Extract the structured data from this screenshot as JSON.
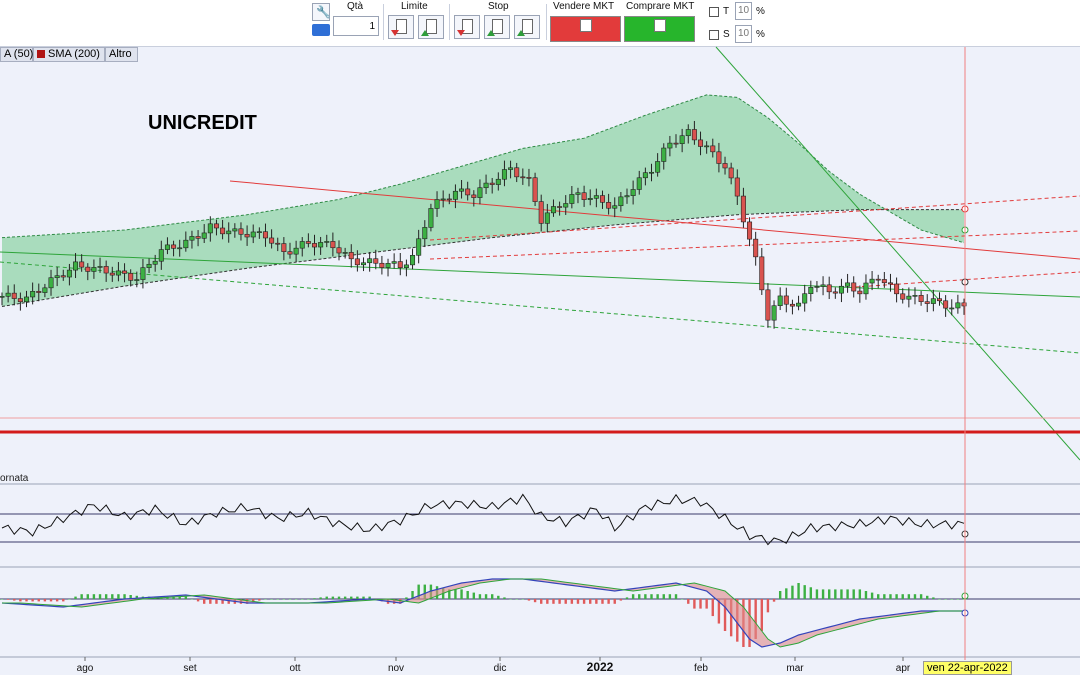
{
  "toolbar": {
    "qty_label": "Qtà",
    "qty_value": "1",
    "limit_label": "Limite",
    "stop_label": "Stop",
    "sell_label": "Vendere MKT",
    "buy_label": "Comprare MKT",
    "t_label": "T",
    "t_value": "10",
    "s_label": "S",
    "s_value": "10",
    "pct": "%",
    "colors": {
      "sell": "#e23b3b",
      "buy": "#27b52c"
    }
  },
  "legend": [
    {
      "label": "A (50)",
      "color": "#1a7a2a"
    },
    {
      "label": "SMA (200)",
      "color": "#b01515"
    },
    {
      "label": "Altro",
      "color": ""
    }
  ],
  "chart_data": {
    "type": "candlestick",
    "title": "UNICREDIT",
    "x_ticks": [
      "ago",
      "set",
      "ott",
      "nov",
      "dic",
      "2022",
      "feb",
      "mar",
      "apr"
    ],
    "cursor_date": "ven 22-apr-2022",
    "subpanel_label": "ornata",
    "price_path_keypoints": [
      [
        0,
        14
      ],
      [
        4,
        13
      ],
      [
        8,
        20
      ],
      [
        12,
        26
      ],
      [
        17,
        24
      ],
      [
        22,
        21
      ],
      [
        26,
        32
      ],
      [
        30,
        35
      ],
      [
        34,
        41
      ],
      [
        38,
        39
      ],
      [
        43,
        38
      ],
      [
        46,
        31
      ],
      [
        50,
        35
      ],
      [
        54,
        34
      ],
      [
        57,
        28
      ],
      [
        61,
        27
      ],
      [
        65,
        26
      ],
      [
        67,
        29
      ],
      [
        70,
        49
      ],
      [
        74,
        55
      ],
      [
        77,
        54
      ],
      [
        80,
        59
      ],
      [
        83,
        64
      ],
      [
        86,
        59
      ],
      [
        88,
        44
      ],
      [
        91,
        50
      ],
      [
        94,
        54
      ],
      [
        97,
        52
      ],
      [
        100,
        49
      ],
      [
        103,
        57
      ],
      [
        106,
        64
      ],
      [
        109,
        74
      ],
      [
        112,
        78
      ],
      [
        115,
        72
      ],
      [
        118,
        65
      ],
      [
        120,
        53
      ],
      [
        123,
        28
      ],
      [
        125,
        6
      ],
      [
        127,
        13
      ],
      [
        130,
        10
      ],
      [
        132,
        19
      ],
      [
        135,
        16
      ],
      [
        138,
        18
      ],
      [
        140,
        16
      ],
      [
        143,
        22
      ],
      [
        146,
        15
      ],
      [
        149,
        13
      ],
      [
        152,
        12
      ],
      [
        155,
        10
      ],
      [
        157,
        10
      ]
    ],
    "series_sma50_keypoints": [
      [
        0,
        7
      ],
      [
        20,
        10
      ],
      [
        40,
        16
      ],
      [
        55,
        22
      ],
      [
        65,
        28
      ],
      [
        75,
        35
      ],
      [
        85,
        42
      ],
      [
        95,
        46
      ],
      [
        105,
        55
      ],
      [
        115,
        63
      ],
      [
        120,
        62
      ],
      [
        125,
        54
      ],
      [
        130,
        44
      ],
      [
        135,
        33
      ],
      [
        140,
        24
      ],
      [
        145,
        17
      ],
      [
        150,
        10
      ],
      [
        157,
        5
      ]
    ],
    "series_sma200_keypoints": [
      [
        0,
        0
      ],
      [
        20,
        8
      ],
      [
        40,
        15
      ],
      [
        60,
        21
      ],
      [
        80,
        27
      ],
      [
        100,
        32
      ],
      [
        120,
        36
      ],
      [
        140,
        38
      ],
      [
        157,
        38
      ]
    ],
    "oscillator_keypoints": [
      [
        0,
        50
      ],
      [
        5,
        48
      ],
      [
        10,
        55
      ],
      [
        15,
        62
      ],
      [
        20,
        56
      ],
      [
        25,
        60
      ],
      [
        30,
        52
      ],
      [
        35,
        58
      ],
      [
        40,
        61
      ],
      [
        45,
        55
      ],
      [
        50,
        58
      ],
      [
        55,
        52
      ],
      [
        60,
        49
      ],
      [
        65,
        54
      ],
      [
        70,
        62
      ],
      [
        75,
        63
      ],
      [
        80,
        61
      ],
      [
        85,
        66
      ],
      [
        88,
        56
      ],
      [
        92,
        53
      ],
      [
        97,
        60
      ],
      [
        100,
        50
      ],
      [
        105,
        61
      ],
      [
        110,
        65
      ],
      [
        114,
        64
      ],
      [
        118,
        55
      ],
      [
        122,
        46
      ],
      [
        126,
        43
      ],
      [
        128,
        44
      ],
      [
        132,
        50
      ],
      [
        136,
        51
      ],
      [
        140,
        52
      ],
      [
        145,
        55
      ],
      [
        150,
        52
      ],
      [
        157,
        52
      ]
    ],
    "macd_keypoints": [
      [
        0,
        -1
      ],
      [
        10,
        -2
      ],
      [
        20,
        0
      ],
      [
        30,
        1
      ],
      [
        40,
        -1
      ],
      [
        50,
        -1
      ],
      [
        60,
        0
      ],
      [
        65,
        -1
      ],
      [
        70,
        2
      ],
      [
        75,
        4
      ],
      [
        80,
        5
      ],
      [
        85,
        5
      ],
      [
        90,
        4
      ],
      [
        95,
        3
      ],
      [
        100,
        2
      ],
      [
        105,
        3
      ],
      [
        110,
        4
      ],
      [
        115,
        2
      ],
      [
        118,
        -2
      ],
      [
        120,
        -6
      ],
      [
        122,
        -10
      ],
      [
        124,
        -12
      ],
      [
        127,
        -11
      ],
      [
        130,
        -9
      ],
      [
        135,
        -7
      ],
      [
        140,
        -5
      ],
      [
        145,
        -4
      ],
      [
        150,
        -3
      ],
      [
        157,
        -3
      ]
    ]
  }
}
